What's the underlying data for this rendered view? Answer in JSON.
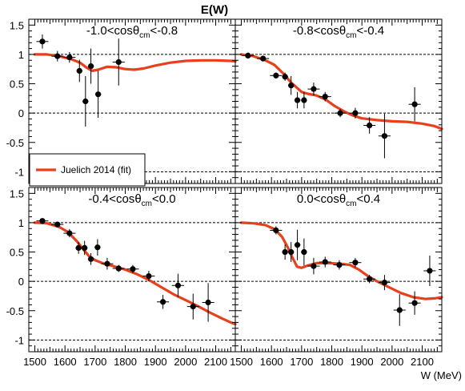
{
  "chart_data": {
    "type": "scatter",
    "title": "E(W)",
    "xlabel": "W (MeV)",
    "ylabel": "",
    "xlim": [
      1480,
      2165
    ],
    "ylim": [
      -1.2,
      1.6
    ],
    "xticks": [
      "1500",
      "1600",
      "1700",
      "1800",
      "1900",
      "2000",
      "2100"
    ],
    "yticks": [
      "1.5",
      "1",
      "0.5",
      "0",
      "-0.5",
      "-1"
    ],
    "reference_lines": [
      1,
      0,
      -1
    ],
    "legend": {
      "label": "Juelich 2014 (fit)",
      "color": "#e8401c",
      "placement": "lower-left of top-left panel"
    },
    "panels": [
      {
        "label": {
          "prefix": "-1.0<cos",
          "theta": "θ",
          "sub": "cm",
          "suffix": "<-0.8"
        },
        "points": [
          {
            "x": 1525,
            "y": 1.22,
            "ey": 0.12,
            "ex": 20
          },
          {
            "x": 1575,
            "y": 0.97,
            "ey": 0.09,
            "ex": 20
          },
          {
            "x": 1615,
            "y": 0.95,
            "ey": 0.09,
            "ex": 20
          },
          {
            "x": 1648,
            "y": 0.72,
            "ey": 0.19,
            "ex": 10
          },
          {
            "x": 1668,
            "y": 0.2,
            "ey": 0.43,
            "ex": 10
          },
          {
            "x": 1686,
            "y": 0.8,
            "ey": 0.3,
            "ex": 10
          },
          {
            "x": 1710,
            "y": 0.32,
            "ey": 0.4,
            "ex": 10
          },
          {
            "x": 1778,
            "y": 0.87,
            "ey": 0.4,
            "ex": 20
          }
        ],
        "model": [
          [
            1500,
            1.0
          ],
          [
            1540,
            1.0
          ],
          [
            1580,
            0.97
          ],
          [
            1620,
            0.92
          ],
          [
            1650,
            0.86
          ],
          [
            1670,
            0.78
          ],
          [
            1690,
            0.72
          ],
          [
            1710,
            0.74
          ],
          [
            1740,
            0.79
          ],
          [
            1770,
            0.78
          ],
          [
            1800,
            0.75
          ],
          [
            1830,
            0.74
          ],
          [
            1860,
            0.76
          ],
          [
            1900,
            0.81
          ],
          [
            1950,
            0.86
          ],
          [
            2000,
            0.89
          ],
          [
            2050,
            0.9
          ],
          [
            2100,
            0.9
          ],
          [
            2150,
            0.89
          ],
          [
            2165,
            0.88
          ]
        ]
      },
      {
        "label": {
          "prefix": "-0.8<cos",
          "theta": "θ",
          "sub": "cm",
          "suffix": "<-0.4"
        },
        "points": [
          {
            "x": 1522,
            "y": 0.98,
            "ey": 0.05,
            "ex": 20
          },
          {
            "x": 1572,
            "y": 0.93,
            "ey": 0.05,
            "ex": 20
          },
          {
            "x": 1615,
            "y": 0.64,
            "ey": 0.05,
            "ex": 20
          },
          {
            "x": 1645,
            "y": 0.62,
            "ey": 0.07,
            "ex": 10
          },
          {
            "x": 1665,
            "y": 0.47,
            "ey": 0.16,
            "ex": 10
          },
          {
            "x": 1686,
            "y": 0.22,
            "ey": 0.14,
            "ex": 10
          },
          {
            "x": 1708,
            "y": 0.22,
            "ey": 0.14,
            "ex": 10
          },
          {
            "x": 1740,
            "y": 0.41,
            "ey": 0.11,
            "ex": 20
          },
          {
            "x": 1778,
            "y": 0.28,
            "ey": 0.08,
            "ex": 20
          },
          {
            "x": 1828,
            "y": 0.0,
            "ey": 0.07,
            "ex": 20
          },
          {
            "x": 1878,
            "y": 0.0,
            "ey": 0.09,
            "ex": 20
          },
          {
            "x": 1925,
            "y": -0.21,
            "ey": 0.14,
            "ex": 20
          },
          {
            "x": 1975,
            "y": -0.39,
            "ey": 0.38,
            "ex": 20
          },
          {
            "x": 2075,
            "y": 0.15,
            "ey": 0.29,
            "ex": 20
          }
        ],
        "model": [
          [
            1500,
            1.0
          ],
          [
            1540,
            0.97
          ],
          [
            1580,
            0.9
          ],
          [
            1610,
            0.82
          ],
          [
            1640,
            0.67
          ],
          [
            1665,
            0.52
          ],
          [
            1685,
            0.43
          ],
          [
            1700,
            0.36
          ],
          [
            1720,
            0.33
          ],
          [
            1750,
            0.3
          ],
          [
            1780,
            0.23
          ],
          [
            1810,
            0.12
          ],
          [
            1840,
            0.03
          ],
          [
            1870,
            -0.04
          ],
          [
            1900,
            -0.09
          ],
          [
            1950,
            -0.12
          ],
          [
            2000,
            -0.14
          ],
          [
            2050,
            -0.15
          ],
          [
            2100,
            -0.18
          ],
          [
            2140,
            -0.22
          ],
          [
            2165,
            -0.27
          ]
        ]
      },
      {
        "label": {
          "prefix": "-0.4<cos",
          "theta": "θ",
          "sub": "cm",
          "suffix": "<0.0"
        },
        "points": [
          {
            "x": 1525,
            "y": 1.03,
            "ey": 0.04,
            "ex": 20
          },
          {
            "x": 1575,
            "y": 0.97,
            "ey": 0.04,
            "ex": 20
          },
          {
            "x": 1615,
            "y": 0.82,
            "ey": 0.07,
            "ex": 20
          },
          {
            "x": 1645,
            "y": 0.57,
            "ey": 0.1,
            "ex": 10
          },
          {
            "x": 1665,
            "y": 0.57,
            "ey": 0.12,
            "ex": 10
          },
          {
            "x": 1686,
            "y": 0.38,
            "ey": 0.1,
            "ex": 10
          },
          {
            "x": 1708,
            "y": 0.58,
            "ey": 0.14,
            "ex": 10
          },
          {
            "x": 1740,
            "y": 0.3,
            "ey": 0.1,
            "ex": 20
          },
          {
            "x": 1778,
            "y": 0.22,
            "ey": 0.06,
            "ex": 20
          },
          {
            "x": 1825,
            "y": 0.21,
            "ey": 0.07,
            "ex": 20
          },
          {
            "x": 1878,
            "y": 0.09,
            "ey": 0.09,
            "ex": 20
          },
          {
            "x": 1925,
            "y": -0.35,
            "ey": 0.12,
            "ex": 20
          },
          {
            "x": 1975,
            "y": -0.07,
            "ey": 0.2,
            "ex": 20
          },
          {
            "x": 2025,
            "y": -0.43,
            "ey": 0.22,
            "ex": 20
          },
          {
            "x": 2075,
            "y": -0.36,
            "ey": 0.33,
            "ex": 20
          }
        ],
        "model": [
          [
            1500,
            1.0
          ],
          [
            1540,
            0.99
          ],
          [
            1580,
            0.93
          ],
          [
            1610,
            0.84
          ],
          [
            1640,
            0.68
          ],
          [
            1660,
            0.55
          ],
          [
            1680,
            0.43
          ],
          [
            1700,
            0.36
          ],
          [
            1730,
            0.3
          ],
          [
            1760,
            0.26
          ],
          [
            1800,
            0.2
          ],
          [
            1840,
            0.12
          ],
          [
            1880,
            0.02
          ],
          [
            1920,
            -0.1
          ],
          [
            1960,
            -0.22
          ],
          [
            2000,
            -0.32
          ],
          [
            2040,
            -0.42
          ],
          [
            2080,
            -0.53
          ],
          [
            2120,
            -0.63
          ],
          [
            2150,
            -0.7
          ],
          [
            2165,
            -0.73
          ]
        ]
      },
      {
        "label": {
          "prefix": "0.0<cos",
          "theta": "θ",
          "sub": "cm",
          "suffix": "<0.4"
        },
        "points": [
          {
            "x": 1615,
            "y": 0.87,
            "ey": 0.07,
            "ex": 20
          },
          {
            "x": 1645,
            "y": 0.5,
            "ey": 0.13,
            "ex": 10
          },
          {
            "x": 1665,
            "y": 0.5,
            "ey": 0.17,
            "ex": 10
          },
          {
            "x": 1686,
            "y": 0.62,
            "ey": 0.26,
            "ex": 10
          },
          {
            "x": 1708,
            "y": 0.5,
            "ey": 0.23,
            "ex": 10
          },
          {
            "x": 1740,
            "y": 0.26,
            "ey": 0.14,
            "ex": 20
          },
          {
            "x": 1778,
            "y": 0.33,
            "ey": 0.09,
            "ex": 20
          },
          {
            "x": 1825,
            "y": 0.28,
            "ey": 0.08,
            "ex": 20
          },
          {
            "x": 1878,
            "y": 0.32,
            "ey": 0.08,
            "ex": 20
          },
          {
            "x": 1925,
            "y": 0.04,
            "ey": 0.07,
            "ex": 20
          },
          {
            "x": 1975,
            "y": -0.02,
            "ey": 0.13,
            "ex": 20
          },
          {
            "x": 2025,
            "y": -0.49,
            "ey": 0.27,
            "ex": 20
          },
          {
            "x": 2075,
            "y": -0.37,
            "ey": 0.2,
            "ex": 20
          },
          {
            "x": 2125,
            "y": 0.18,
            "ey": 0.26,
            "ex": 20
          }
        ],
        "model": [
          [
            1500,
            1.0
          ],
          [
            1540,
            0.99
          ],
          [
            1580,
            0.96
          ],
          [
            1610,
            0.89
          ],
          [
            1635,
            0.76
          ],
          [
            1655,
            0.57
          ],
          [
            1670,
            0.4
          ],
          [
            1685,
            0.25
          ],
          [
            1700,
            0.23
          ],
          [
            1720,
            0.27
          ],
          [
            1750,
            0.31
          ],
          [
            1790,
            0.31
          ],
          [
            1830,
            0.3
          ],
          [
            1860,
            0.28
          ],
          [
            1890,
            0.2
          ],
          [
            1920,
            0.09
          ],
          [
            1950,
            0.0
          ],
          [
            1990,
            -0.1
          ],
          [
            2030,
            -0.2
          ],
          [
            2070,
            -0.27
          ],
          [
            2110,
            -0.3
          ],
          [
            2140,
            -0.29
          ],
          [
            2165,
            -0.27
          ]
        ]
      }
    ]
  }
}
